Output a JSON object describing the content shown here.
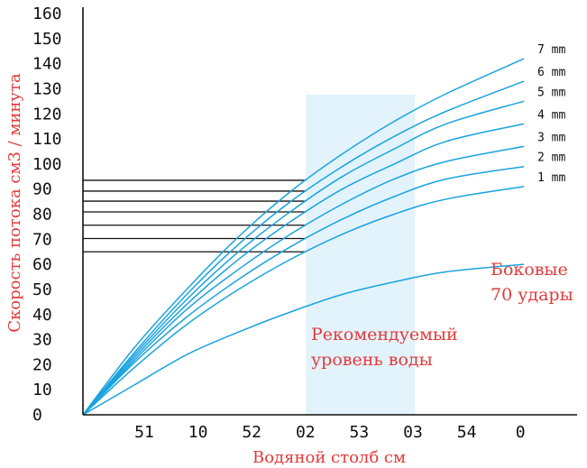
{
  "colors": {
    "curve": "#1aa3df",
    "band": "#e2f3fc",
    "accent": "#e23b3b",
    "axis": "#111111"
  },
  "chart_data": {
    "type": "line",
    "xlabel": "Водяной столб см",
    "ylabel": "Скорость потока см3 / минута",
    "ylim": [
      0,
      160
    ],
    "x_tick_labels": [
      "51",
      "10",
      "52",
      "02",
      "53",
      "03",
      "54",
      "0"
    ],
    "y_tick_labels": [
      "0",
      "10",
      "20",
      "30",
      "40",
      "50",
      "60",
      "70",
      "80",
      "90",
      "100",
      "110",
      "120",
      "130",
      "140",
      "150",
      "160"
    ],
    "y_ticks": [
      0,
      10,
      20,
      30,
      40,
      50,
      60,
      70,
      80,
      90,
      100,
      110,
      120,
      130,
      140,
      150,
      160
    ],
    "x_range": [
      0,
      8.5
    ],
    "recommended_band": [
      4.3,
      6.4
    ],
    "reference_line_end_x": 4.3,
    "series": [
      {
        "name": "7 mm",
        "x": [
          0,
          1,
          2,
          3,
          4,
          5,
          6,
          7,
          8.5
        ],
        "y": [
          0,
          27,
          50,
          71,
          89,
          104,
          117,
          128,
          142
        ]
      },
      {
        "name": "6 mm",
        "x": [
          0,
          1,
          2,
          3,
          4,
          5,
          6,
          7,
          8.5
        ],
        "y": [
          0,
          25,
          48,
          68,
          85,
          99,
          111,
          121,
          133
        ]
      },
      {
        "name": "5 mm",
        "x": [
          0,
          1,
          2,
          3,
          4,
          5,
          6,
          7,
          8.5
        ],
        "y": [
          0,
          24,
          46,
          65,
          81,
          95,
          106,
          116,
          125
        ]
      },
      {
        "name": "4 mm",
        "x": [
          0,
          1,
          2,
          3,
          4,
          5,
          6,
          7,
          8.5
        ],
        "y": [
          0,
          23,
          44,
          62,
          77,
          90,
          100,
          109,
          116
        ]
      },
      {
        "name": "3 mm",
        "x": [
          0,
          1,
          2,
          3,
          4,
          5,
          6,
          7,
          8.5
        ],
        "y": [
          0,
          22,
          42,
          58,
          72,
          84,
          94,
          101,
          107
        ]
      },
      {
        "name": "2 mm",
        "x": [
          0,
          1,
          2,
          3,
          4,
          5,
          6,
          7,
          8.5
        ],
        "y": [
          0,
          21,
          39,
          54,
          67,
          78,
          87,
          94,
          99
        ]
      },
      {
        "name": "1 mm",
        "x": [
          0,
          1,
          2,
          3,
          4,
          5,
          6,
          7,
          8.5
        ],
        "y": [
          0,
          19,
          36,
          50,
          62,
          72,
          80,
          86,
          91
        ]
      },
      {
        "name": "Боковые 70 удары",
        "x": [
          0,
          1,
          2,
          3,
          4,
          5,
          6,
          7,
          8.5
        ],
        "y": [
          0,
          12,
          24,
          33,
          41,
          48,
          53,
          57,
          60
        ]
      }
    ],
    "annotations": {
      "band_label": [
        "Рекомендуемый",
        "уровень воды"
      ],
      "side_label": [
        "Боковые",
        "70 удары"
      ]
    }
  }
}
